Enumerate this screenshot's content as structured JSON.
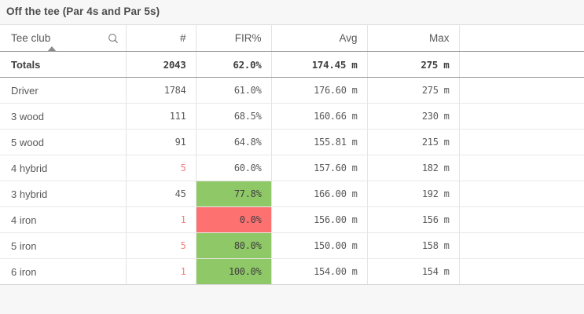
{
  "title": "Off the tee (Par 4s and Par 5s)",
  "colors": {
    "positive_bg": "#8fc866",
    "negative_bg": "#fd7171",
    "alert_text": "#f2817f",
    "header_text": "#595959",
    "totals_text": "#404040"
  },
  "icons": {
    "search": "magnifying-glass",
    "sort": "triangle-up-ascending"
  },
  "table": {
    "columns": [
      {
        "label": "Tee club"
      },
      {
        "label": "#"
      },
      {
        "label": "FIR%"
      },
      {
        "label": "Avg"
      },
      {
        "label": "Max"
      },
      {
        "label": ""
      }
    ],
    "sort": {
      "column": "Tee club",
      "direction": "ascending"
    },
    "totals": {
      "label": "Totals",
      "count": "2043",
      "fir": "62.0%",
      "avg": "174.45 m",
      "max": "275 m"
    },
    "rows": [
      {
        "club": "Driver",
        "count": "1784",
        "count_red": false,
        "fir": "61.0%",
        "fir_bg": "none",
        "avg": "176.60 m",
        "max": "275 m"
      },
      {
        "club": "3 wood",
        "count": "111",
        "count_red": false,
        "fir": "68.5%",
        "fir_bg": "none",
        "avg": "160.66 m",
        "max": "230 m"
      },
      {
        "club": "5 wood",
        "count": "91",
        "count_red": false,
        "fir": "64.8%",
        "fir_bg": "none",
        "avg": "155.81 m",
        "max": "215 m"
      },
      {
        "club": "4 hybrid",
        "count": "5",
        "count_red": true,
        "fir": "60.0%",
        "fir_bg": "none",
        "avg": "157.60 m",
        "max": "182 m"
      },
      {
        "club": "3 hybrid",
        "count": "45",
        "count_red": false,
        "fir": "77.8%",
        "fir_bg": "green",
        "avg": "166.00 m",
        "max": "192 m"
      },
      {
        "club": "4 iron",
        "count": "1",
        "count_red": true,
        "fir": "0.0%",
        "fir_bg": "red",
        "avg": "156.00 m",
        "max": "156 m"
      },
      {
        "club": "5 iron",
        "count": "5",
        "count_red": true,
        "fir": "80.0%",
        "fir_bg": "green",
        "avg": "150.00 m",
        "max": "158 m"
      },
      {
        "club": "6 iron",
        "count": "1",
        "count_red": true,
        "fir": "100.0%",
        "fir_bg": "green",
        "avg": "154.00 m",
        "max": "154 m"
      }
    ]
  }
}
